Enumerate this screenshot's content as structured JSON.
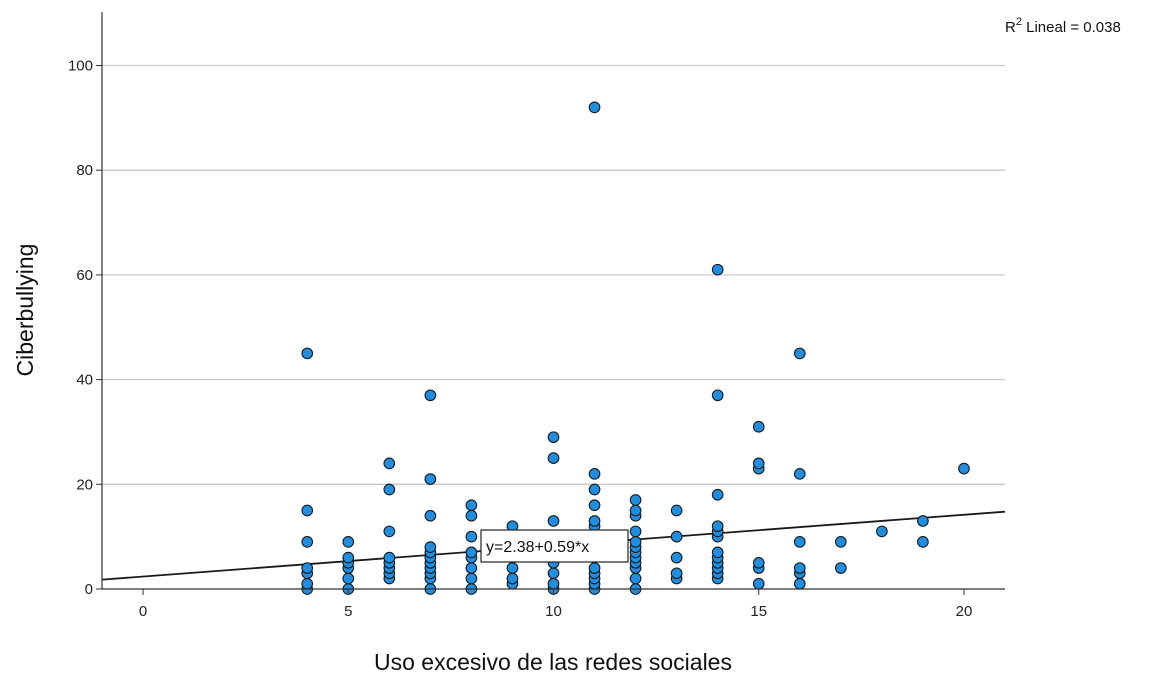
{
  "chart_data": {
    "type": "scatter",
    "title": "",
    "xlabel": "Uso excesivo de las redes sociales",
    "ylabel": "Ciberbullying",
    "xlim": [
      -1,
      21
    ],
    "ylim": [
      0,
      110
    ],
    "x_ticks": [
      "0",
      "5",
      "10",
      "15",
      "20"
    ],
    "y_ticks": [
      "0",
      "20",
      "40",
      "60",
      "80",
      "100"
    ],
    "grid": "horizontal",
    "point_color": "#1f8ee0",
    "point_edge_color": "#1a1a1a",
    "line_color": "#1a1a1a",
    "fit_line": {
      "intercept": 2.38,
      "slope": 0.59,
      "equation_label": "y=2.38+0.59*x",
      "r2_prefix": "R",
      "r2_superscript": "2",
      "r2_suffix": " Lineal = 0.038"
    },
    "points": [
      {
        "x": 4,
        "y": 0
      },
      {
        "x": 4,
        "y": 1
      },
      {
        "x": 4,
        "y": 3
      },
      {
        "x": 4,
        "y": 4
      },
      {
        "x": 4,
        "y": 9
      },
      {
        "x": 4,
        "y": 15
      },
      {
        "x": 4,
        "y": 45
      },
      {
        "x": 5,
        "y": 0
      },
      {
        "x": 5,
        "y": 2
      },
      {
        "x": 5,
        "y": 4
      },
      {
        "x": 5,
        "y": 5
      },
      {
        "x": 5,
        "y": 6
      },
      {
        "x": 5,
        "y": 9
      },
      {
        "x": 6,
        "y": 2
      },
      {
        "x": 6,
        "y": 3
      },
      {
        "x": 6,
        "y": 4
      },
      {
        "x": 6,
        "y": 5
      },
      {
        "x": 6,
        "y": 6
      },
      {
        "x": 6,
        "y": 11
      },
      {
        "x": 6,
        "y": 19
      },
      {
        "x": 6,
        "y": 24
      },
      {
        "x": 7,
        "y": 0
      },
      {
        "x": 7,
        "y": 2
      },
      {
        "x": 7,
        "y": 3
      },
      {
        "x": 7,
        "y": 4
      },
      {
        "x": 7,
        "y": 5
      },
      {
        "x": 7,
        "y": 6
      },
      {
        "x": 7,
        "y": 7
      },
      {
        "x": 7,
        "y": 8
      },
      {
        "x": 7,
        "y": 14
      },
      {
        "x": 7,
        "y": 21
      },
      {
        "x": 7,
        "y": 37
      },
      {
        "x": 8,
        "y": 0
      },
      {
        "x": 8,
        "y": 2
      },
      {
        "x": 8,
        "y": 4
      },
      {
        "x": 8,
        "y": 6
      },
      {
        "x": 8,
        "y": 7
      },
      {
        "x": 8,
        "y": 10
      },
      {
        "x": 8,
        "y": 14
      },
      {
        "x": 8,
        "y": 16
      },
      {
        "x": 9,
        "y": 1
      },
      {
        "x": 9,
        "y": 2
      },
      {
        "x": 9,
        "y": 4
      },
      {
        "x": 9,
        "y": 6
      },
      {
        "x": 9,
        "y": 8
      },
      {
        "x": 9,
        "y": 12
      },
      {
        "x": 10,
        "y": 0
      },
      {
        "x": 10,
        "y": 1
      },
      {
        "x": 10,
        "y": 3
      },
      {
        "x": 10,
        "y": 5
      },
      {
        "x": 10,
        "y": 7
      },
      {
        "x": 10,
        "y": 9
      },
      {
        "x": 10,
        "y": 13
      },
      {
        "x": 10,
        "y": 25
      },
      {
        "x": 10,
        "y": 29
      },
      {
        "x": 11,
        "y": 0
      },
      {
        "x": 11,
        "y": 1
      },
      {
        "x": 11,
        "y": 2
      },
      {
        "x": 11,
        "y": 3
      },
      {
        "x": 11,
        "y": 4
      },
      {
        "x": 11,
        "y": 6
      },
      {
        "x": 11,
        "y": 8
      },
      {
        "x": 11,
        "y": 10
      },
      {
        "x": 11,
        "y": 12
      },
      {
        "x": 11,
        "y": 13
      },
      {
        "x": 11,
        "y": 16
      },
      {
        "x": 11,
        "y": 19
      },
      {
        "x": 11,
        "y": 22
      },
      {
        "x": 11,
        "y": 92
      },
      {
        "x": 12,
        "y": 0
      },
      {
        "x": 12,
        "y": 2
      },
      {
        "x": 12,
        "y": 4
      },
      {
        "x": 12,
        "y": 5
      },
      {
        "x": 12,
        "y": 6
      },
      {
        "x": 12,
        "y": 7
      },
      {
        "x": 12,
        "y": 8
      },
      {
        "x": 12,
        "y": 9
      },
      {
        "x": 12,
        "y": 11
      },
      {
        "x": 12,
        "y": 14
      },
      {
        "x": 12,
        "y": 15
      },
      {
        "x": 12,
        "y": 17
      },
      {
        "x": 13,
        "y": 2
      },
      {
        "x": 13,
        "y": 3
      },
      {
        "x": 13,
        "y": 6
      },
      {
        "x": 13,
        "y": 10
      },
      {
        "x": 13,
        "y": 15
      },
      {
        "x": 14,
        "y": 2
      },
      {
        "x": 14,
        "y": 3
      },
      {
        "x": 14,
        "y": 4
      },
      {
        "x": 14,
        "y": 5
      },
      {
        "x": 14,
        "y": 6
      },
      {
        "x": 14,
        "y": 7
      },
      {
        "x": 14,
        "y": 10
      },
      {
        "x": 14,
        "y": 11
      },
      {
        "x": 14,
        "y": 12
      },
      {
        "x": 14,
        "y": 18
      },
      {
        "x": 14,
        "y": 37
      },
      {
        "x": 14,
        "y": 61
      },
      {
        "x": 15,
        "y": 1
      },
      {
        "x": 15,
        "y": 4
      },
      {
        "x": 15,
        "y": 5
      },
      {
        "x": 15,
        "y": 23
      },
      {
        "x": 15,
        "y": 24
      },
      {
        "x": 15,
        "y": 31
      },
      {
        "x": 16,
        "y": 1
      },
      {
        "x": 16,
        "y": 3
      },
      {
        "x": 16,
        "y": 4
      },
      {
        "x": 16,
        "y": 9
      },
      {
        "x": 16,
        "y": 22
      },
      {
        "x": 16,
        "y": 45
      },
      {
        "x": 17,
        "y": 4
      },
      {
        "x": 17,
        "y": 9
      },
      {
        "x": 18,
        "y": 11
      },
      {
        "x": 19,
        "y": 9
      },
      {
        "x": 19,
        "y": 13
      },
      {
        "x": 20,
        "y": 23
      }
    ]
  }
}
